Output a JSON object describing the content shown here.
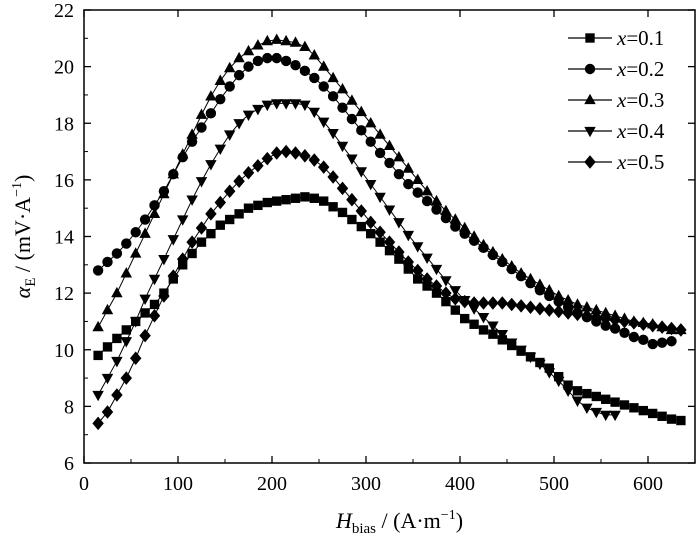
{
  "chart_data": {
    "type": "line",
    "title": "",
    "xlabel": {
      "var": "H",
      "sub": "bias",
      "unit": " / (A·m",
      "sup": "−1",
      "close": ")"
    },
    "ylabel": {
      "var": "α",
      "sub": "E",
      "unit": " / (mV·A",
      "sup": "−1",
      "close": ")"
    },
    "xlim": [
      0,
      650
    ],
    "ylim": [
      6,
      22
    ],
    "xticks": [
      0,
      100,
      200,
      300,
      400,
      500,
      600
    ],
    "yticks": [
      6,
      8,
      10,
      12,
      14,
      16,
      18,
      20,
      22
    ],
    "grid": false,
    "legend_position": "top-right",
    "series": [
      {
        "name": "x=0.1",
        "legend_var": "x",
        "legend_val": "=0.1",
        "marker": "square",
        "x": [
          15,
          25,
          35,
          45,
          55,
          65,
          75,
          85,
          95,
          105,
          115,
          125,
          135,
          145,
          155,
          165,
          175,
          185,
          195,
          205,
          215,
          225,
          235,
          245,
          255,
          265,
          275,
          285,
          295,
          305,
          315,
          325,
          335,
          345,
          355,
          365,
          375,
          385,
          395,
          405,
          415,
          425,
          435,
          445,
          455,
          465,
          475,
          485,
          495,
          505,
          515,
          525,
          535,
          545,
          555,
          565,
          575,
          585,
          595,
          605,
          615,
          625,
          635
        ],
        "values": [
          9.8,
          10.1,
          10.4,
          10.7,
          11.0,
          11.3,
          11.6,
          12.0,
          12.5,
          13.0,
          13.4,
          13.8,
          14.1,
          14.4,
          14.6,
          14.8,
          15.0,
          15.1,
          15.2,
          15.25,
          15.3,
          15.35,
          15.4,
          15.35,
          15.25,
          15.05,
          14.85,
          14.6,
          14.35,
          14.1,
          13.8,
          13.5,
          13.2,
          12.85,
          12.5,
          12.25,
          12.0,
          11.7,
          11.4,
          11.1,
          10.9,
          10.7,
          10.55,
          10.35,
          10.15,
          9.95,
          9.75,
          9.55,
          9.35,
          9.05,
          8.75,
          8.55,
          8.45,
          8.35,
          8.25,
          8.15,
          8.05,
          7.95,
          7.85,
          7.75,
          7.65,
          7.55,
          7.5
        ]
      },
      {
        "name": "x=0.2",
        "legend_var": "x",
        "legend_val": "=0.2",
        "marker": "circle",
        "x": [
          15,
          25,
          35,
          45,
          55,
          65,
          75,
          85,
          95,
          105,
          115,
          125,
          135,
          145,
          155,
          165,
          175,
          185,
          195,
          205,
          215,
          225,
          235,
          245,
          255,
          265,
          275,
          285,
          295,
          305,
          315,
          325,
          335,
          345,
          355,
          365,
          375,
          385,
          395,
          405,
          415,
          425,
          435,
          445,
          455,
          465,
          475,
          485,
          495,
          505,
          515,
          525,
          535,
          545,
          555,
          565,
          575,
          585,
          595,
          605,
          615,
          625
        ],
        "values": [
          12.8,
          13.1,
          13.4,
          13.75,
          14.15,
          14.6,
          15.1,
          15.6,
          16.2,
          16.8,
          17.35,
          17.85,
          18.35,
          18.85,
          19.3,
          19.7,
          20.0,
          20.2,
          20.3,
          20.3,
          20.2,
          20.05,
          19.85,
          19.6,
          19.3,
          18.95,
          18.55,
          18.15,
          17.75,
          17.35,
          16.95,
          16.6,
          16.2,
          15.85,
          15.55,
          15.25,
          14.95,
          14.65,
          14.35,
          14.1,
          13.85,
          13.6,
          13.35,
          13.1,
          12.85,
          12.6,
          12.35,
          12.1,
          11.9,
          11.7,
          11.5,
          11.3,
          11.15,
          11.0,
          10.85,
          10.75,
          10.6,
          10.45,
          10.35,
          10.2,
          10.25,
          10.3
        ]
      },
      {
        "name": "x=0.3",
        "legend_var": "x",
        "legend_val": "=0.3",
        "marker": "triangle-up",
        "x": [
          15,
          25,
          35,
          45,
          55,
          65,
          75,
          85,
          95,
          105,
          115,
          125,
          135,
          145,
          155,
          165,
          175,
          185,
          195,
          205,
          215,
          225,
          235,
          245,
          255,
          265,
          275,
          285,
          295,
          305,
          315,
          325,
          335,
          345,
          355,
          365,
          375,
          385,
          395,
          405,
          415,
          425,
          435,
          445,
          455,
          465,
          475,
          485,
          495,
          505,
          515,
          525,
          535,
          545,
          555,
          565,
          575,
          585,
          595,
          605,
          615,
          625,
          635
        ],
        "values": [
          10.8,
          11.4,
          12.0,
          12.7,
          13.4,
          14.1,
          14.8,
          15.5,
          16.2,
          16.9,
          17.6,
          18.3,
          18.95,
          19.5,
          19.95,
          20.3,
          20.55,
          20.75,
          20.9,
          20.95,
          20.9,
          20.85,
          20.7,
          20.4,
          20.0,
          19.6,
          19.2,
          18.8,
          18.4,
          18.0,
          17.6,
          17.2,
          16.8,
          16.4,
          16.0,
          15.6,
          15.25,
          14.9,
          14.6,
          14.3,
          14.0,
          13.7,
          13.45,
          13.2,
          12.95,
          12.7,
          12.5,
          12.3,
          12.1,
          11.9,
          11.75,
          11.6,
          11.5,
          11.4,
          11.3,
          11.2,
          11.1,
          11.0,
          10.95,
          10.9,
          10.8,
          10.7,
          10.7
        ]
      },
      {
        "name": "x=0.4",
        "legend_var": "x",
        "legend_val": "=0.4",
        "marker": "triangle-down",
        "x": [
          15,
          25,
          35,
          45,
          55,
          65,
          75,
          85,
          95,
          105,
          115,
          125,
          135,
          145,
          155,
          165,
          175,
          185,
          195,
          205,
          215,
          225,
          235,
          245,
          255,
          265,
          275,
          285,
          295,
          305,
          315,
          325,
          335,
          345,
          355,
          365,
          375,
          385,
          395,
          405,
          415,
          425,
          435,
          445,
          455,
          465,
          475,
          485,
          495,
          505,
          515,
          525,
          535,
          545,
          555,
          565
        ],
        "values": [
          8.4,
          9.0,
          9.6,
          10.3,
          11.0,
          11.8,
          12.5,
          13.2,
          13.9,
          14.6,
          15.3,
          15.95,
          16.55,
          17.1,
          17.6,
          18.0,
          18.3,
          18.5,
          18.65,
          18.7,
          18.7,
          18.7,
          18.65,
          18.4,
          18.05,
          17.65,
          17.2,
          16.75,
          16.3,
          15.85,
          15.4,
          14.95,
          14.5,
          14.05,
          13.65,
          13.25,
          12.85,
          12.45,
          12.1,
          11.75,
          11.45,
          11.15,
          10.85,
          10.55,
          10.25,
          10.0,
          9.75,
          9.5,
          9.2,
          8.9,
          8.55,
          8.2,
          7.95,
          7.8,
          7.7,
          7.7
        ]
      },
      {
        "name": "x=0.5",
        "legend_var": "x",
        "legend_val": "=0.5",
        "marker": "diamond",
        "x": [
          15,
          25,
          35,
          45,
          55,
          65,
          75,
          85,
          95,
          105,
          115,
          125,
          135,
          145,
          155,
          165,
          175,
          185,
          195,
          205,
          215,
          225,
          235,
          245,
          255,
          265,
          275,
          285,
          295,
          305,
          315,
          325,
          335,
          345,
          355,
          365,
          375,
          385,
          395,
          405,
          415,
          425,
          435,
          445,
          455,
          465,
          475,
          485,
          495,
          505,
          515,
          525,
          535,
          545,
          555,
          565,
          575,
          585,
          595,
          605,
          615,
          625,
          635
        ],
        "values": [
          7.4,
          7.8,
          8.4,
          9.0,
          9.7,
          10.5,
          11.2,
          11.9,
          12.6,
          13.2,
          13.8,
          14.3,
          14.8,
          15.2,
          15.6,
          15.95,
          16.25,
          16.5,
          16.75,
          16.95,
          17.0,
          16.95,
          16.85,
          16.7,
          16.45,
          16.1,
          15.7,
          15.3,
          14.9,
          14.5,
          14.15,
          13.8,
          13.45,
          13.1,
          12.8,
          12.5,
          12.25,
          12.0,
          11.8,
          11.7,
          11.65,
          11.65,
          11.65,
          11.65,
          11.6,
          11.55,
          11.5,
          11.45,
          11.4,
          11.35,
          11.3,
          11.25,
          11.2,
          11.15,
          11.1,
          11.05,
          11.0,
          10.95,
          10.9,
          10.85,
          10.8,
          10.75,
          10.7
        ]
      }
    ]
  }
}
